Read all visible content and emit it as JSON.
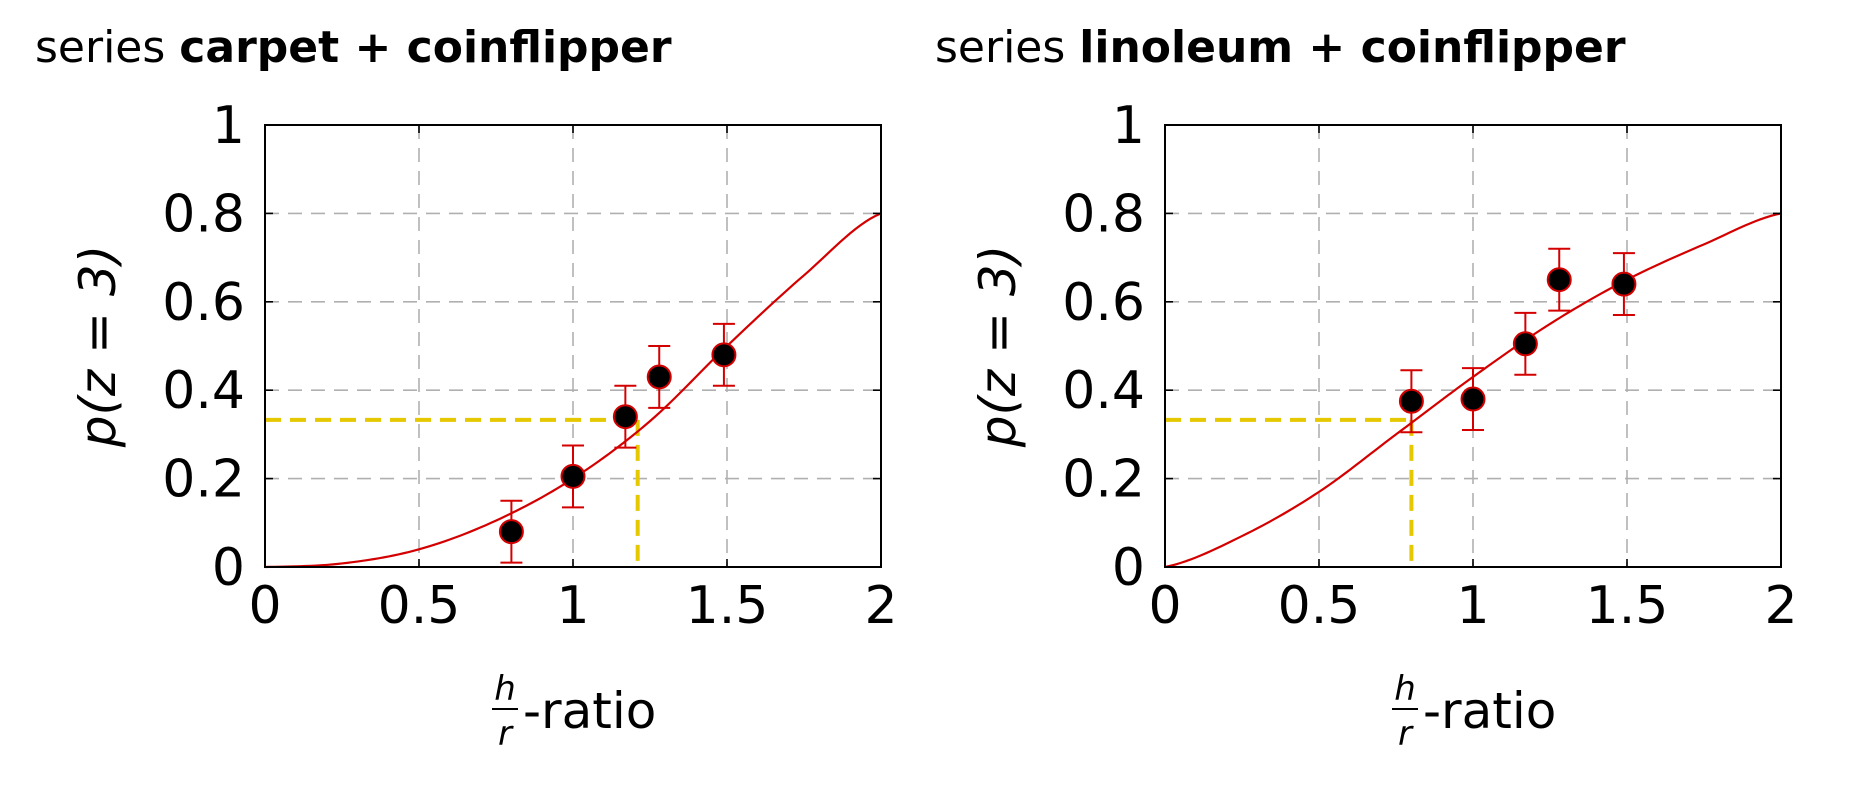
{
  "chart_data": [
    {
      "type": "scatter",
      "title_prefix": "series",
      "title_bold": "carpet + coinflipper",
      "xlabel_numerator": "h",
      "xlabel_denominator": "r",
      "xlabel_suffix": "-ratio",
      "ylabel": "p(z = 3)",
      "xlim": [
        0,
        2
      ],
      "ylim": [
        0,
        1
      ],
      "xticks": [
        0,
        0.5,
        1,
        1.5,
        2
      ],
      "xtick_labels": [
        "0",
        "0.5",
        "1",
        "1.5",
        "2"
      ],
      "yticks": [
        0,
        0.2,
        0.4,
        0.6,
        0.8,
        1
      ],
      "ytick_labels": [
        "0",
        "0.2",
        "0.4",
        "0.6",
        "0.8",
        "1"
      ],
      "grid": true,
      "points": [
        {
          "x": 0.8,
          "y": 0.08,
          "err": 0.07
        },
        {
          "x": 1.0,
          "y": 0.205,
          "err": 0.07
        },
        {
          "x": 1.17,
          "y": 0.34,
          "err": 0.07
        },
        {
          "x": 1.28,
          "y": 0.43,
          "err": 0.07
        },
        {
          "x": 1.49,
          "y": 0.48,
          "err": 0.07
        }
      ],
      "curve": {
        "shape": "sigmoid",
        "x": [
          0,
          0.25,
          0.5,
          0.75,
          1.0,
          1.25,
          1.5,
          1.75,
          2.0
        ],
        "y": [
          0,
          0.008,
          0.04,
          0.105,
          0.2,
          0.33,
          0.5,
          0.66,
          0.8
        ]
      },
      "reference": {
        "x": 1.21,
        "y": 0.333
      }
    },
    {
      "type": "scatter",
      "title_prefix": "series",
      "title_bold": "linoleum + coinflipper",
      "xlabel_numerator": "h",
      "xlabel_denominator": "r",
      "xlabel_suffix": "-ratio",
      "ylabel": "p(z = 3)",
      "xlim": [
        0,
        2
      ],
      "ylim": [
        0,
        1
      ],
      "xticks": [
        0,
        0.5,
        1,
        1.5,
        2
      ],
      "xtick_labels": [
        "0",
        "0.5",
        "1",
        "1.5",
        "2"
      ],
      "yticks": [
        0,
        0.2,
        0.4,
        0.6,
        0.8,
        1
      ],
      "ytick_labels": [
        "0",
        "0.2",
        "0.4",
        "0.6",
        "0.8",
        "1"
      ],
      "grid": true,
      "points": [
        {
          "x": 0.8,
          "y": 0.375,
          "err": 0.07
        },
        {
          "x": 1.0,
          "y": 0.38,
          "err": 0.07
        },
        {
          "x": 1.17,
          "y": 0.505,
          "err": 0.07
        },
        {
          "x": 1.28,
          "y": 0.65,
          "err": 0.07
        },
        {
          "x": 1.49,
          "y": 0.64,
          "err": 0.07
        }
      ],
      "curve": {
        "shape": "concave",
        "x": [
          0,
          0.25,
          0.5,
          0.75,
          1.0,
          1.25,
          1.5,
          1.75,
          2.0
        ],
        "y": [
          0,
          0.07,
          0.17,
          0.3,
          0.43,
          0.55,
          0.65,
          0.73,
          0.8
        ]
      },
      "reference": {
        "x": 0.8,
        "y": 0.333
      }
    }
  ],
  "colors": {
    "curve": "#d40000",
    "marker_fill": "#000000",
    "marker_edge": "#d40000",
    "errorbar": "#d40000",
    "reference": "#e6c800",
    "grid": "#b0b0b0",
    "axis": "#000000"
  }
}
